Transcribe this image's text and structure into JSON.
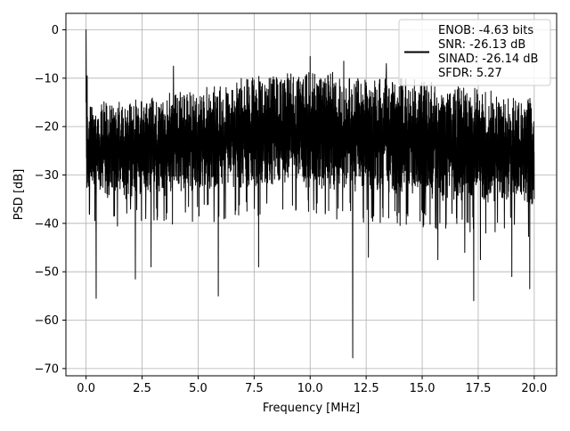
{
  "chart_data": {
    "type": "line",
    "title": "",
    "xlabel": "Frequency [MHz]",
    "ylabel": "PSD [dB]",
    "xlim": [
      -0.9,
      21.0
    ],
    "ylim": [
      -71.5,
      3.4
    ],
    "xticks": [
      0.0,
      2.5,
      5.0,
      7.5,
      10.0,
      12.5,
      15.0,
      17.5,
      20.0
    ],
    "xtick_labels": [
      "0.0",
      "2.5",
      "5.0",
      "7.5",
      "10.0",
      "12.5",
      "15.0",
      "17.5",
      "20.0"
    ],
    "yticks": [
      0,
      -10,
      -20,
      -30,
      -40,
      -50,
      -60,
      -70
    ],
    "ytick_labels": [
      "0",
      "−10",
      "−20",
      "−30",
      "−40",
      "−50",
      "−60",
      "−70"
    ],
    "grid": true,
    "legend_position": "top-right",
    "series": [
      {
        "legend_lines": [
          "ENOB: -4.63 bits",
          "SNR: -26.13 dB",
          "SINAD: -26.14 dB",
          "SFDR: 5.27"
        ],
        "color": "#000000",
        "x_range": [
          0.0,
          20.0
        ],
        "noise_band": {
          "upper": [
            [
              0.0,
              -15
            ],
            [
              2.5,
              -14
            ],
            [
              5.0,
              -12
            ],
            [
              7.5,
              -9
            ],
            [
              10.0,
              -8
            ],
            [
              12.5,
              -9
            ],
            [
              15.0,
              -10
            ],
            [
              17.5,
              -12
            ],
            [
              20.0,
              -14
            ]
          ],
          "lower": [
            [
              0.0,
              -35
            ],
            [
              2.5,
              -35
            ],
            [
              5.0,
              -34
            ],
            [
              7.5,
              -33
            ],
            [
              10.0,
              -33
            ],
            [
              12.5,
              -34
            ],
            [
              15.0,
              -35
            ],
            [
              17.5,
              -36
            ],
            [
              20.0,
              -37
            ]
          ]
        },
        "peaks": [
          {
            "x": 0.0,
            "y": 0.0
          },
          {
            "x": 0.05,
            "y": -9.5
          },
          {
            "x": 3.9,
            "y": -7.5
          },
          {
            "x": 10.0,
            "y": -5.5
          },
          {
            "x": 11.5,
            "y": -6.5
          },
          {
            "x": 13.4,
            "y": -7.0
          }
        ],
        "dips": [
          {
            "x": 0.45,
            "y": -55.5
          },
          {
            "x": 2.2,
            "y": -51.5
          },
          {
            "x": 2.9,
            "y": -49.0
          },
          {
            "x": 5.9,
            "y": -55.0
          },
          {
            "x": 7.7,
            "y": -49.0
          },
          {
            "x": 11.9,
            "y": -67.8
          },
          {
            "x": 12.6,
            "y": -47.0
          },
          {
            "x": 15.7,
            "y": -47.5
          },
          {
            "x": 16.9,
            "y": -46.0
          },
          {
            "x": 17.3,
            "y": -56.0
          },
          {
            "x": 17.6,
            "y": -47.5
          },
          {
            "x": 19.0,
            "y": -51.0
          },
          {
            "x": 19.8,
            "y": -53.5
          }
        ]
      }
    ]
  }
}
